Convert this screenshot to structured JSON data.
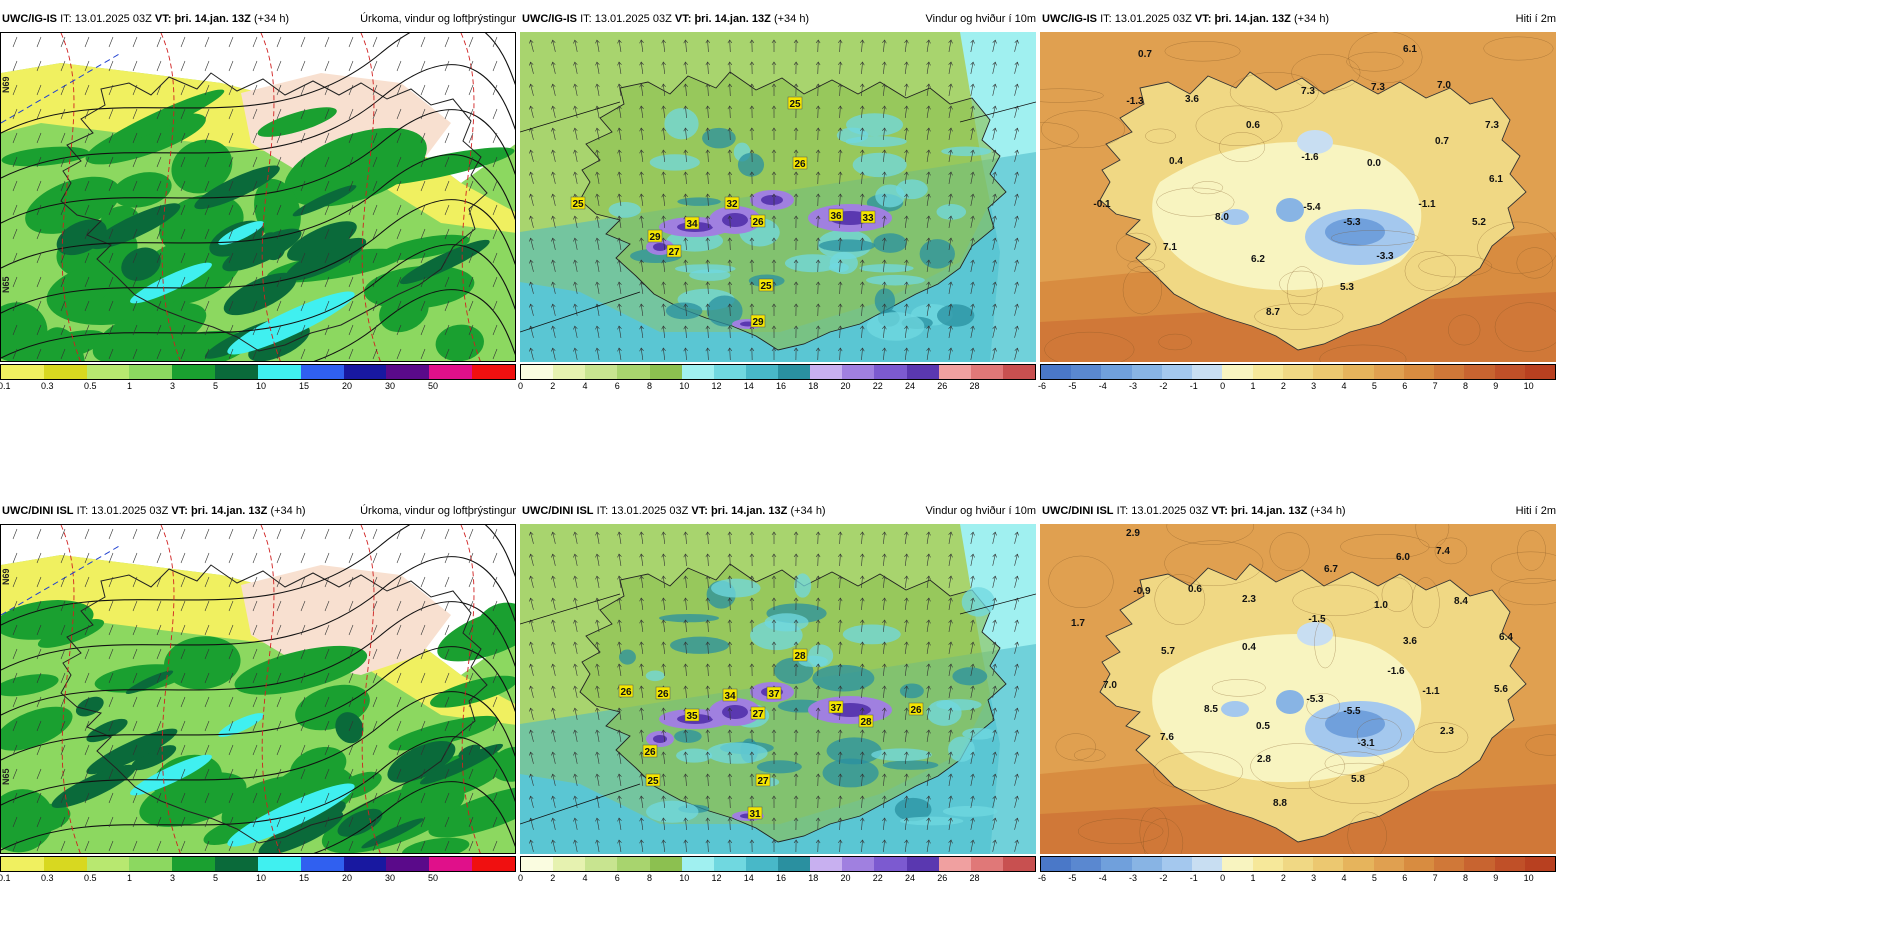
{
  "rows": [
    {
      "model": "UWC/IG-IS",
      "it_label": "IT:",
      "it_value": "13.01.2025 03Z",
      "vt_label": "VT:",
      "vt_value": "þri. 14.jan. 13Z",
      "lead": "(+34 h)"
    },
    {
      "model": "UWC/DINI ISL",
      "it_label": "IT:",
      "it_value": "13.01.2025 03Z",
      "vt_label": "VT:",
      "vt_value": "þri. 14.jan. 13Z",
      "lead": "(+34 h)"
    }
  ],
  "titles": {
    "precip": "Úrkoma, vindur og loftþrýstingur",
    "wind": "Vindur og hviður í 10m",
    "temp": "Hiti í 2m"
  },
  "colorbars": {
    "precip": {
      "labels": [
        "0.1",
        "0.3",
        "0.5",
        "1",
        "3",
        "5",
        "10",
        "15",
        "20",
        "30",
        "50"
      ],
      "colors": [
        "#f0f060",
        "#d8d820",
        "#b8e870",
        "#8cd860",
        "#1aa030",
        "#0a6a3a",
        "#40f0f0",
        "#3060f0",
        "#1818a0",
        "#5a0a8a",
        "#e0108a",
        "#f01010"
      ]
    },
    "wind": {
      "labels": [
        "0",
        "2",
        "4",
        "6",
        "8",
        "10",
        "12",
        "14",
        "16",
        "18",
        "20",
        "22",
        "24",
        "26",
        "28"
      ],
      "colors": [
        "#fafce0",
        "#e6f2b0",
        "#c8e490",
        "#a8d46e",
        "#8cc050",
        "#a0f0f0",
        "#70d8e0",
        "#48b8c8",
        "#2a90a0",
        "#c8b0f0",
        "#a080e0",
        "#7c5ad0",
        "#5a38b0",
        "#f0a0a0",
        "#e07878",
        "#c85050"
      ]
    },
    "temp": {
      "labels": [
        "-6",
        "-5",
        "-4",
        "-3",
        "-2",
        "-1",
        "0",
        "1",
        "2",
        "3",
        "4",
        "5",
        "6",
        "7",
        "8",
        "9",
        "10"
      ],
      "colors": [
        "#4a78c8",
        "#5a88d0",
        "#70a0dc",
        "#88b4e4",
        "#a4c8ee",
        "#c8def2",
        "#f8f4c0",
        "#f6e89a",
        "#f0d884",
        "#ecc870",
        "#e6b45c",
        "#e0a050",
        "#d88c40",
        "#d07838",
        "#c86430",
        "#c05028",
        "#b84020"
      ]
    }
  },
  "wind_labels": [
    [
      "25",
      "26",
      "25",
      "32",
      "26",
      "34",
      "29",
      "27",
      "36",
      "33",
      "25",
      "29"
    ],
    [
      "28",
      "26",
      "26",
      "37",
      "34",
      "37",
      "27",
      "35",
      "28",
      "26",
      "26",
      "25",
      "27",
      "31"
    ]
  ],
  "temp_labels": [
    [
      "0.7",
      "6.1",
      "-1.3",
      "3.6",
      "7.3",
      "7.3",
      "7.0",
      "7.3",
      "0.6",
      "0.7",
      "-1.6",
      "0.4",
      "0.0",
      "6.1",
      "-0.1",
      "8.0",
      "-5.4",
      "-1.1",
      "-5.3",
      "5.2",
      "7.1",
      "6.2",
      "-3.3",
      "5.3",
      "8.7"
    ],
    [
      "2.9",
      "7.4",
      "-0.9",
      "0.6",
      "6.7",
      "6.0",
      "1.7",
      "2.3",
      "-1.5",
      "1.0",
      "8.4",
      "5.7",
      "0.4",
      "3.6",
      "6.4",
      "-1.6",
      "7.0",
      "-1.1",
      "5.6",
      "8.5",
      "-5.3",
      "-5.5",
      "7.6",
      "0.5",
      "-3.1",
      "2.3",
      "2.8",
      "5.8",
      "8.8"
    ]
  ],
  "grid_labels": [
    "N69",
    "N65"
  ]
}
